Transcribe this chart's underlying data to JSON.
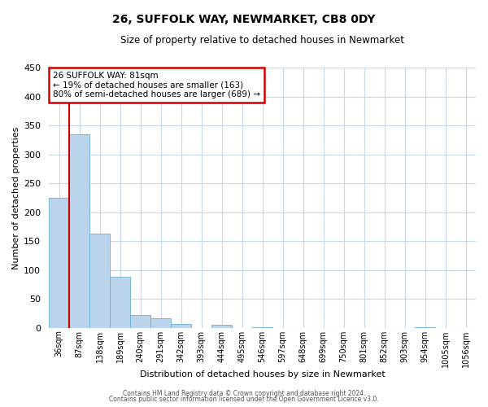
{
  "title": "26, SUFFOLK WAY, NEWMARKET, CB8 0DY",
  "subtitle": "Size of property relative to detached houses in Newmarket",
  "xlabel": "Distribution of detached houses by size in Newmarket",
  "ylabel": "Number of detached properties",
  "bar_labels": [
    "36sqm",
    "87sqm",
    "138sqm",
    "189sqm",
    "240sqm",
    "291sqm",
    "342sqm",
    "393sqm",
    "444sqm",
    "495sqm",
    "546sqm",
    "597sqm",
    "648sqm",
    "699sqm",
    "750sqm",
    "801sqm",
    "852sqm",
    "903sqm",
    "954sqm",
    "1005sqm",
    "1056sqm"
  ],
  "bar_values": [
    225,
    335,
    163,
    88,
    22,
    17,
    6,
    0,
    5,
    0,
    1,
    0,
    0,
    0,
    0,
    0,
    0,
    0,
    1,
    0,
    0
  ],
  "bar_color": "#bad4ec",
  "bar_edge_color": "#6aaed6",
  "ylim": [
    0,
    450
  ],
  "yticks": [
    0,
    50,
    100,
    150,
    200,
    250,
    300,
    350,
    400,
    450
  ],
  "annotation_title": "26 SUFFOLK WAY: 81sqm",
  "annotation_line1": "← 19% of detached houses are smaller (163)",
  "annotation_line2": "80% of semi-detached houses are larger (689) →",
  "annotation_box_color": "#ffffff",
  "annotation_box_edge_color": "#cc0000",
  "vline_color": "#cc0000",
  "footer1": "Contains HM Land Registry data © Crown copyright and database right 2024.",
  "footer2": "Contains public sector information licensed under the Open Government Licence v3.0.",
  "background_color": "#ffffff",
  "grid_color": "#c8d8ea"
}
